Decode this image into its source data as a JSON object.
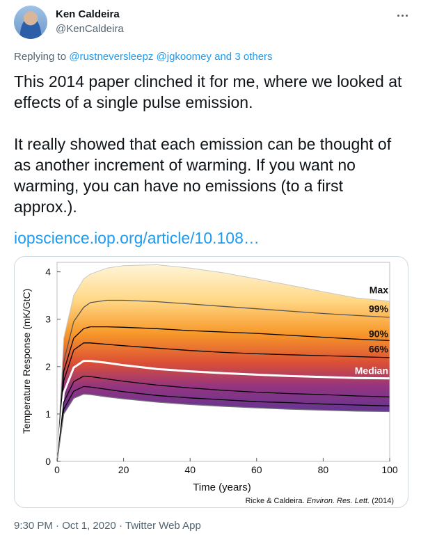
{
  "author": {
    "name": "Ken Caldeira",
    "handle": "@KenCaldeira",
    "avatar_icon": "profile-photo"
  },
  "more_icon": "more-horizontal-icon",
  "reply": {
    "prefix": "Replying to",
    "mention_1": "@rustneversleepz",
    "mention_2": "@jgkoomey",
    "and_word": "and",
    "others": "3 others"
  },
  "text": "This 2014 paper clinched it for me, where we looked at effects of a single pulse emission.\n\nIt really showed that each emission can be thought of as another increment of warming. If you want no warming, you can have no emissions (to a first approx.).",
  "link": "iopscience.iop.org/article/10.108…",
  "chart_data": {
    "type": "line",
    "xlabel": "Time (years)",
    "ylabel": "Temperature Response (mK/GtC)",
    "xlim": [
      0,
      100
    ],
    "ylim": [
      0,
      4.2
    ],
    "xticks": [
      "0",
      "20",
      "40",
      "60",
      "80",
      "100"
    ],
    "yticks": [
      "0",
      "1",
      "2",
      "3",
      "4"
    ],
    "x": [
      0,
      2,
      5,
      8,
      10,
      15,
      20,
      30,
      40,
      50,
      60,
      70,
      80,
      90,
      100
    ],
    "series": [
      {
        "name": "Max",
        "values": [
          0,
          2.6,
          3.5,
          3.85,
          3.95,
          4.08,
          4.13,
          4.15,
          4.08,
          3.98,
          3.85,
          3.72,
          3.58,
          3.45,
          3.38
        ],
        "color": "#c8c8c8"
      },
      {
        "name": "99%",
        "values": [
          0,
          2.1,
          2.95,
          3.25,
          3.35,
          3.4,
          3.4,
          3.37,
          3.32,
          3.27,
          3.22,
          3.17,
          3.12,
          3.08,
          3.04
        ],
        "color": "#555555"
      },
      {
        "name": "90%",
        "values": [
          0,
          1.9,
          2.6,
          2.8,
          2.84,
          2.84,
          2.83,
          2.8,
          2.76,
          2.73,
          2.7,
          2.66,
          2.62,
          2.58,
          2.55
        ],
        "color": "#000000"
      },
      {
        "name": "66%",
        "values": [
          0,
          1.7,
          2.35,
          2.5,
          2.5,
          2.47,
          2.44,
          2.39,
          2.34,
          2.3,
          2.27,
          2.25,
          2.23,
          2.21,
          2.19
        ],
        "color": "#000000"
      },
      {
        "name": "Median",
        "values": [
          0,
          1.45,
          1.98,
          2.12,
          2.12,
          2.08,
          2.03,
          1.95,
          1.9,
          1.86,
          1.83,
          1.8,
          1.78,
          1.76,
          1.75
        ],
        "color": "#ffffff"
      },
      {
        "name": "",
        "values": [
          0,
          1.25,
          1.68,
          1.8,
          1.79,
          1.74,
          1.69,
          1.61,
          1.55,
          1.5,
          1.46,
          1.43,
          1.41,
          1.38,
          1.36
        ],
        "color": "#000000"
      },
      {
        "name": "",
        "values": [
          0,
          1.1,
          1.48,
          1.58,
          1.57,
          1.52,
          1.47,
          1.39,
          1.34,
          1.3,
          1.26,
          1.24,
          1.21,
          1.19,
          1.17
        ],
        "color": "#000000"
      },
      {
        "name": "",
        "values": [
          0,
          1.0,
          1.33,
          1.42,
          1.41,
          1.36,
          1.32,
          1.25,
          1.2,
          1.16,
          1.13,
          1.1,
          1.08,
          1.06,
          1.05
        ],
        "color": "#777777"
      }
    ],
    "labels": [
      "Max",
      "99%",
      "90%",
      "66%",
      "Median"
    ],
    "credit": {
      "authors": "Ricke & Caldeira.",
      "journal": "Environ. Res. Lett.",
      "year": "(2014)"
    }
  },
  "meta": {
    "time": "9:30 PM",
    "sep": "·",
    "date": "Oct 1, 2020",
    "source": "Twitter Web App"
  }
}
